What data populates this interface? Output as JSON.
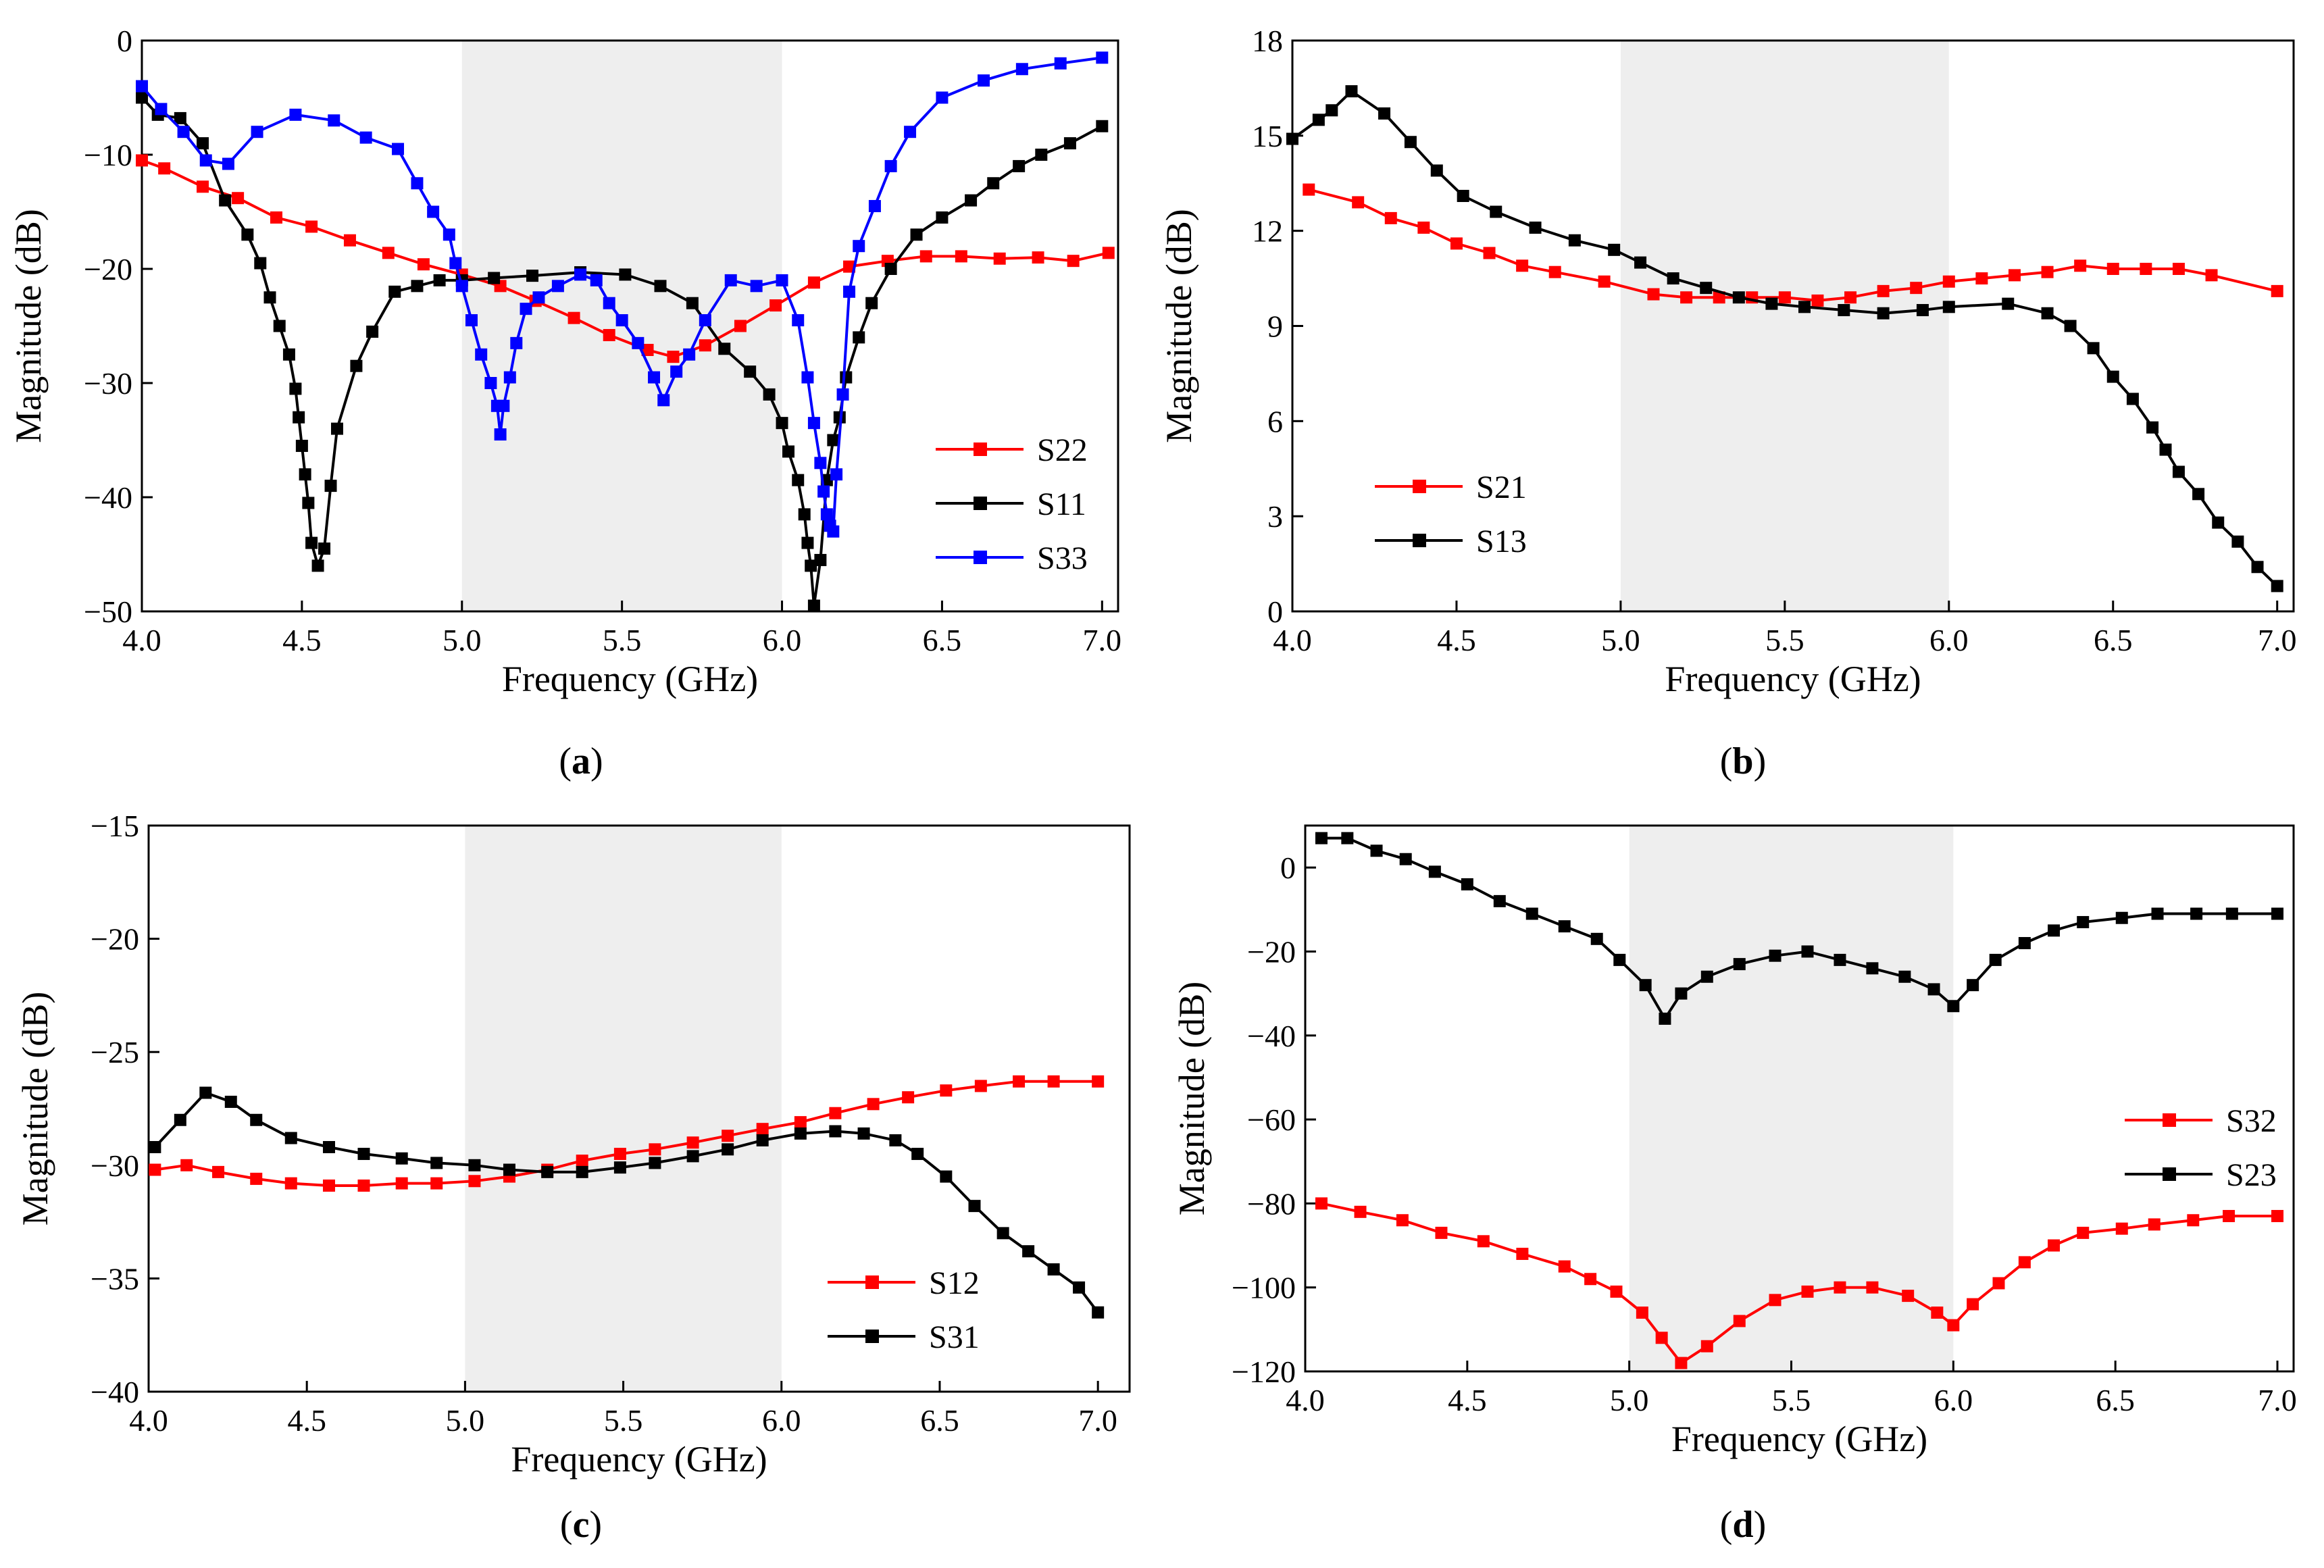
{
  "chart_data": [
    {
      "type": "line",
      "panel": "a",
      "caption_letter": "a",
      "xlabel": "Frequency (GHz)",
      "ylabel": "Magnitude (dB)",
      "xlim": [
        4.0,
        7.05
      ],
      "ylim": [
        -50,
        0
      ],
      "xticks": [
        4.0,
        4.5,
        5.0,
        5.5,
        6.0,
        6.5,
        7.0
      ],
      "xtick_labels": [
        "4.0",
        "4.5",
        "5.0",
        "5.5",
        "6.0",
        "6.5",
        "7.0"
      ],
      "yticks": [
        0,
        -10,
        -20,
        -30,
        -40,
        -50
      ],
      "ytick_labels": [
        "0",
        "−10",
        "−20",
        "−30",
        "−40",
        "−50"
      ],
      "shaded_band": [
        5.0,
        6.0
      ],
      "legend_position": "bottom-right",
      "series": [
        {
          "name": "S22",
          "color": "#ff0000",
          "x": [
            4.0,
            4.07,
            4.19,
            4.3,
            4.42,
            4.53,
            4.65,
            4.77,
            4.88,
            5.0,
            5.12,
            5.23,
            5.35,
            5.46,
            5.58,
            5.66,
            5.76,
            5.87,
            5.98,
            6.1,
            6.21,
            6.33,
            6.45,
            6.56,
            6.68,
            6.8,
            6.91,
            7.02
          ],
          "y": [
            -10.5,
            -11.2,
            -12.8,
            -13.8,
            -15.5,
            -16.3,
            -17.5,
            -18.6,
            -19.6,
            -20.5,
            -21.5,
            -22.8,
            -24.3,
            -25.8,
            -27.1,
            -27.7,
            -26.7,
            -25.0,
            -23.2,
            -21.2,
            -19.8,
            -19.3,
            -18.9,
            -18.9,
            -19.1,
            -19.0,
            -19.3,
            -18.6
          ]
        },
        {
          "name": "S11",
          "color": "#000000",
          "x": [
            4.0,
            4.05,
            4.12,
            4.19,
            4.26,
            4.33,
            4.37,
            4.4,
            4.43,
            4.46,
            4.48,
            4.49,
            4.5,
            4.51,
            4.52,
            4.53,
            4.55,
            4.57,
            4.59,
            4.61,
            4.67,
            4.72,
            4.79,
            4.86,
            4.93,
            5.0,
            5.1,
            5.22,
            5.37,
            5.51,
            5.62,
            5.72,
            5.82,
            5.9,
            5.96,
            6.0,
            6.02,
            6.05,
            6.07,
            6.08,
            6.09,
            6.1,
            6.12,
            6.14,
            6.16,
            6.18,
            6.2,
            6.24,
            6.28,
            6.34,
            6.42,
            6.5,
            6.59,
            6.66,
            6.74,
            6.81,
            6.9,
            7.0
          ],
          "y": [
            -5,
            -6.5,
            -6.8,
            -9,
            -14,
            -17,
            -19.5,
            -22.5,
            -25,
            -27.5,
            -30.5,
            -33,
            -35.5,
            -38,
            -40.5,
            -44,
            -46,
            -44.5,
            -39,
            -34,
            -28.5,
            -25.5,
            -22,
            -21.5,
            -21,
            -21,
            -20.8,
            -20.6,
            -20.3,
            -20.5,
            -21.5,
            -23,
            -27,
            -29,
            -31,
            -33.5,
            -36,
            -38.5,
            -41.5,
            -44,
            -46,
            -49.5,
            -45.5,
            -38.5,
            -35,
            -33,
            -29.5,
            -26,
            -23,
            -20,
            -17,
            -15.5,
            -14,
            -12.5,
            -11,
            -10,
            -9,
            -7.5
          ]
        },
        {
          "name": "S33",
          "color": "#0000ff",
          "x": [
            4.0,
            4.06,
            4.13,
            4.2,
            4.27,
            4.36,
            4.48,
            4.6,
            4.7,
            4.8,
            4.86,
            4.91,
            4.96,
            4.98,
            5.0,
            5.03,
            5.06,
            5.09,
            5.11,
            5.12,
            5.13,
            5.15,
            5.17,
            5.2,
            5.24,
            5.3,
            5.37,
            5.42,
            5.46,
            5.5,
            5.55,
            5.6,
            5.63,
            5.67,
            5.71,
            5.76,
            5.84,
            5.92,
            6.0,
            6.05,
            6.08,
            6.1,
            6.12,
            6.13,
            6.14,
            6.15,
            6.16,
            6.17,
            6.19,
            6.21,
            6.24,
            6.29,
            6.34,
            6.4,
            6.5,
            6.63,
            6.75,
            6.87,
            7.0
          ],
          "y": [
            -4,
            -6,
            -8,
            -10.5,
            -10.8,
            -8,
            -6.5,
            -7,
            -8.5,
            -9.5,
            -12.5,
            -15,
            -17,
            -19.5,
            -21.5,
            -24.5,
            -27.5,
            -30,
            -32,
            -34.5,
            -32,
            -29.5,
            -26.5,
            -23.5,
            -22.5,
            -21.5,
            -20.5,
            -21,
            -23,
            -24.5,
            -26.5,
            -29.5,
            -31.5,
            -29,
            -27.5,
            -24.5,
            -21,
            -21.5,
            -21,
            -24.5,
            -29.5,
            -33.5,
            -37,
            -39.5,
            -41.5,
            -42.5,
            -43,
            -38,
            -31,
            -22,
            -18,
            -14.5,
            -11,
            -8,
            -5,
            -3.5,
            -2.5,
            -2,
            -1.5
          ]
        }
      ]
    },
    {
      "type": "line",
      "panel": "b",
      "caption_letter": "b",
      "xlabel": "Frequency (GHz)",
      "ylabel": "Magnitude (dB)",
      "xlim": [
        4.0,
        7.05
      ],
      "ylim": [
        0,
        18
      ],
      "xticks": [
        4.0,
        4.5,
        5.0,
        5.5,
        6.0,
        6.5,
        7.0
      ],
      "xtick_labels": [
        "4.0",
        "4.5",
        "5.0",
        "5.5",
        "6.0",
        "6.5",
        "7.0"
      ],
      "yticks": [
        0,
        3,
        6,
        9,
        12,
        15,
        18
      ],
      "ytick_labels": [
        "0",
        "3",
        "6",
        "9",
        "12",
        "15",
        "18"
      ],
      "shaded_band": [
        5.0,
        6.0
      ],
      "legend_position": "bottom-left",
      "series": [
        {
          "name": "S21",
          "color": "#ff0000",
          "x": [
            4.05,
            4.2,
            4.3,
            4.4,
            4.5,
            4.6,
            4.7,
            4.8,
            4.95,
            5.1,
            5.2,
            5.3,
            5.4,
            5.5,
            5.6,
            5.7,
            5.8,
            5.9,
            6.0,
            6.1,
            6.2,
            6.3,
            6.4,
            6.5,
            6.6,
            6.7,
            6.8,
            7.0
          ],
          "y": [
            13.3,
            12.9,
            12.4,
            12.1,
            11.6,
            11.3,
            10.9,
            10.7,
            10.4,
            10.0,
            9.9,
            9.9,
            9.9,
            9.9,
            9.8,
            9.9,
            10.1,
            10.2,
            10.4,
            10.5,
            10.6,
            10.7,
            10.9,
            10.8,
            10.8,
            10.8,
            10.6,
            10.1
          ]
        },
        {
          "name": "S13",
          "color": "#000000",
          "x": [
            4.0,
            4.08,
            4.12,
            4.18,
            4.28,
            4.36,
            4.44,
            4.52,
            4.62,
            4.74,
            4.86,
            4.98,
            5.06,
            5.16,
            5.26,
            5.36,
            5.46,
            5.56,
            5.68,
            5.8,
            5.92,
            6.0,
            6.18,
            6.3,
            6.37,
            6.44,
            6.5,
            6.56,
            6.62,
            6.66,
            6.7,
            6.76,
            6.82,
            6.88,
            6.94,
            7.0
          ],
          "y": [
            14.9,
            15.5,
            15.8,
            16.4,
            15.7,
            14.8,
            13.9,
            13.1,
            12.6,
            12.1,
            11.7,
            11.4,
            11.0,
            10.5,
            10.2,
            9.9,
            9.7,
            9.6,
            9.5,
            9.4,
            9.5,
            9.6,
            9.7,
            9.4,
            9.0,
            8.3,
            7.4,
            6.7,
            5.8,
            5.1,
            4.4,
            3.7,
            2.8,
            2.2,
            1.4,
            0.8
          ]
        }
      ]
    },
    {
      "type": "line",
      "panel": "c",
      "caption_letter": "c",
      "xlabel": "Frequency (GHz)",
      "ylabel": "Magnitude (dB)",
      "xlim": [
        4.0,
        7.1
      ],
      "ylim": [
        -40,
        -15
      ],
      "xticks": [
        4.0,
        4.5,
        5.0,
        5.5,
        6.0,
        6.5,
        7.0
      ],
      "xtick_labels": [
        "4.0",
        "4.5",
        "5.0",
        "5.5",
        "6.0",
        "6.5",
        "7.0"
      ],
      "yticks": [
        -15,
        -20,
        -25,
        -30,
        -35,
        -40
      ],
      "ytick_labels": [
        "−15",
        "−20",
        "−25",
        "−30",
        "−35",
        "−40"
      ],
      "shaded_band": [
        5.0,
        6.0
      ],
      "legend_position": "bottom-right",
      "series": [
        {
          "name": "S12",
          "color": "#ff0000",
          "x": [
            4.02,
            4.12,
            4.22,
            4.34,
            4.45,
            4.57,
            4.68,
            4.8,
            4.91,
            5.03,
            5.14,
            5.26,
            5.37,
            5.49,
            5.6,
            5.72,
            5.83,
            5.94,
            6.06,
            6.17,
            6.29,
            6.4,
            6.52,
            6.63,
            6.75,
            6.86,
            7.0
          ],
          "y": [
            -30.2,
            -30.0,
            -30.3,
            -30.6,
            -30.8,
            -30.9,
            -30.9,
            -30.8,
            -30.8,
            -30.7,
            -30.5,
            -30.2,
            -29.8,
            -29.5,
            -29.3,
            -29.0,
            -28.7,
            -28.4,
            -28.1,
            -27.7,
            -27.3,
            -27.0,
            -26.7,
            -26.5,
            -26.3,
            -26.3,
            -26.3
          ]
        },
        {
          "name": "S31",
          "color": "#000000",
          "x": [
            4.02,
            4.1,
            4.18,
            4.26,
            4.34,
            4.45,
            4.57,
            4.68,
            4.8,
            4.91,
            5.03,
            5.14,
            5.26,
            5.37,
            5.49,
            5.6,
            5.72,
            5.83,
            5.94,
            6.06,
            6.17,
            6.26,
            6.36,
            6.43,
            6.52,
            6.61,
            6.7,
            6.78,
            6.86,
            6.94,
            7.0
          ],
          "y": [
            -29.2,
            -28.0,
            -26.8,
            -27.2,
            -28.0,
            -28.8,
            -29.2,
            -29.5,
            -29.7,
            -29.9,
            -30.0,
            -30.2,
            -30.3,
            -30.3,
            -30.1,
            -29.9,
            -29.6,
            -29.3,
            -28.9,
            -28.6,
            -28.5,
            -28.6,
            -28.9,
            -29.5,
            -30.5,
            -31.8,
            -33.0,
            -33.8,
            -34.6,
            -35.4,
            -36.5
          ]
        }
      ]
    },
    {
      "type": "line",
      "panel": "d",
      "caption_letter": "d",
      "xlabel": "Frequency (GHz)",
      "ylabel": "Magnitude (dB)",
      "xlim": [
        4.0,
        7.05
      ],
      "ylim": [
        -120,
        10
      ],
      "xticks": [
        4.0,
        4.5,
        5.0,
        5.5,
        6.0,
        6.5,
        7.0
      ],
      "xtick_labels": [
        "4.0",
        "4.5",
        "5.0",
        "5.5",
        "6.0",
        "6.5",
        "7.0"
      ],
      "yticks": [
        0,
        -20,
        -40,
        -60,
        -80,
        -100,
        -120
      ],
      "ytick_labels": [
        "0",
        "−20",
        "−40",
        "−60",
        "−80",
        "−100",
        "−120"
      ],
      "shaded_band": [
        5.0,
        6.0
      ],
      "legend_position": "center-right",
      "series": [
        {
          "name": "S32",
          "color": "#ff0000",
          "x": [
            4.05,
            4.17,
            4.3,
            4.42,
            4.55,
            4.67,
            4.8,
            4.88,
            4.96,
            5.04,
            5.1,
            5.16,
            5.24,
            5.34,
            5.45,
            5.55,
            5.65,
            5.75,
            5.86,
            5.95,
            6.0,
            6.06,
            6.14,
            6.22,
            6.31,
            6.4,
            6.52,
            6.62,
            6.74,
            6.85,
            7.0
          ],
          "y": [
            -80,
            -82,
            -84,
            -87,
            -89,
            -92,
            -95,
            -98,
            -101,
            -106,
            -112,
            -118,
            -114,
            -108,
            -103,
            -101,
            -100,
            -100,
            -102,
            -106,
            -109,
            -104,
            -99,
            -94,
            -90,
            -87,
            -86,
            -85,
            -84,
            -83,
            -83
          ]
        },
        {
          "name": "S23",
          "color": "#000000",
          "x": [
            4.05,
            4.13,
            4.22,
            4.31,
            4.4,
            4.5,
            4.6,
            4.7,
            4.8,
            4.9,
            4.97,
            5.05,
            5.11,
            5.16,
            5.24,
            5.34,
            5.45,
            5.55,
            5.65,
            5.75,
            5.85,
            5.94,
            6.0,
            6.06,
            6.13,
            6.22,
            6.31,
            6.4,
            6.52,
            6.63,
            6.75,
            6.86,
            7.0
          ],
          "y": [
            7,
            7,
            4,
            2,
            -1,
            -4,
            -8,
            -11,
            -14,
            -17,
            -22,
            -28,
            -36,
            -30,
            -26,
            -23,
            -21,
            -20,
            -22,
            -24,
            -26,
            -29,
            -33,
            -28,
            -22,
            -18,
            -15,
            -13,
            -12,
            -11,
            -11,
            -11,
            -11
          ]
        }
      ]
    }
  ]
}
